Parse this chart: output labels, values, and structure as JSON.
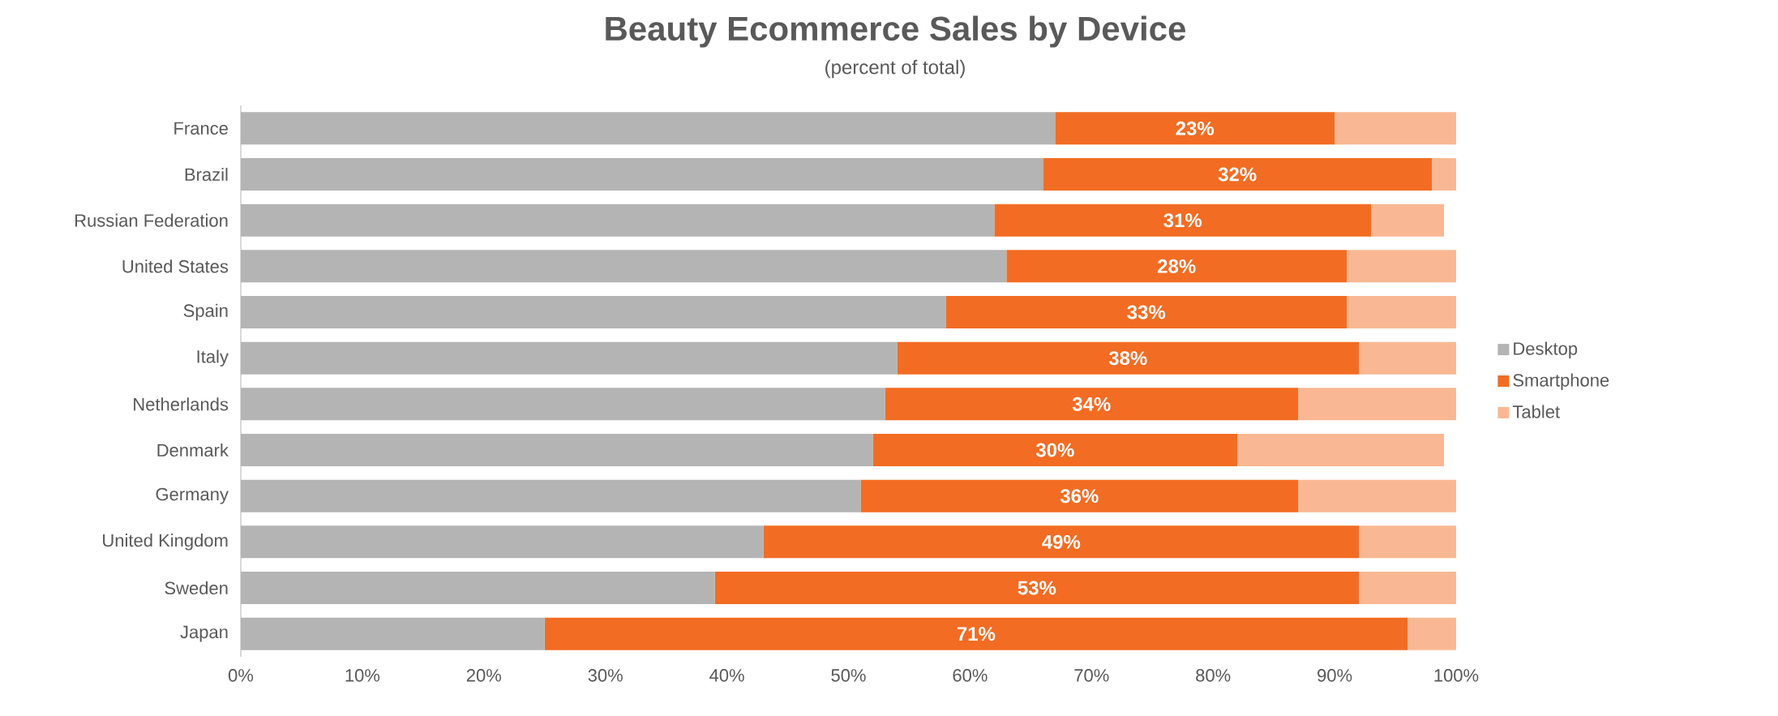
{
  "chart_data": {
    "type": "bar",
    "orientation": "horizontal",
    "stacked": true,
    "title": "Beauty Ecommerce Sales by Device",
    "subtitle": "(percent of total)",
    "categories": [
      "France",
      "Brazil",
      "Russian Federation",
      "United States",
      "Spain",
      "Italy",
      "Netherlands",
      "Denmark",
      "Germany",
      "United Kingdom",
      "Sweden",
      "Japan"
    ],
    "series": [
      {
        "name": "Desktop",
        "color": "#b4b4b4",
        "values": [
          67,
          66,
          62,
          63,
          58,
          54,
          53,
          52,
          51,
          43,
          39,
          25
        ]
      },
      {
        "name": "Smartphone",
        "color": "#f26c23",
        "values": [
          23,
          32,
          31,
          28,
          33,
          38,
          34,
          30,
          36,
          49,
          53,
          71
        ],
        "value_labels": [
          "23%",
          "32%",
          "31%",
          "28%",
          "33%",
          "38%",
          "34%",
          "30%",
          "36%",
          "49%",
          "53%",
          "71%"
        ]
      },
      {
        "name": "Tablet",
        "color": "#f9b893",
        "values": [
          10,
          2,
          6,
          9,
          9,
          8,
          13,
          17,
          13,
          8,
          8,
          4
        ]
      }
    ],
    "xlim": [
      0,
      100
    ],
    "xticks": [
      {
        "value": 0,
        "label": "0%"
      },
      {
        "value": 10,
        "label": "10%"
      },
      {
        "value": 20,
        "label": "20%"
      },
      {
        "value": 30,
        "label": "30%"
      },
      {
        "value": 40,
        "label": "40%"
      },
      {
        "value": 50,
        "label": "50%"
      },
      {
        "value": 60,
        "label": "60%"
      },
      {
        "value": 70,
        "label": "70%"
      },
      {
        "value": 80,
        "label": "80%"
      },
      {
        "value": 90,
        "label": "90%"
      },
      {
        "value": 100,
        "label": "100%"
      }
    ],
    "grid": false,
    "legend": "right"
  }
}
